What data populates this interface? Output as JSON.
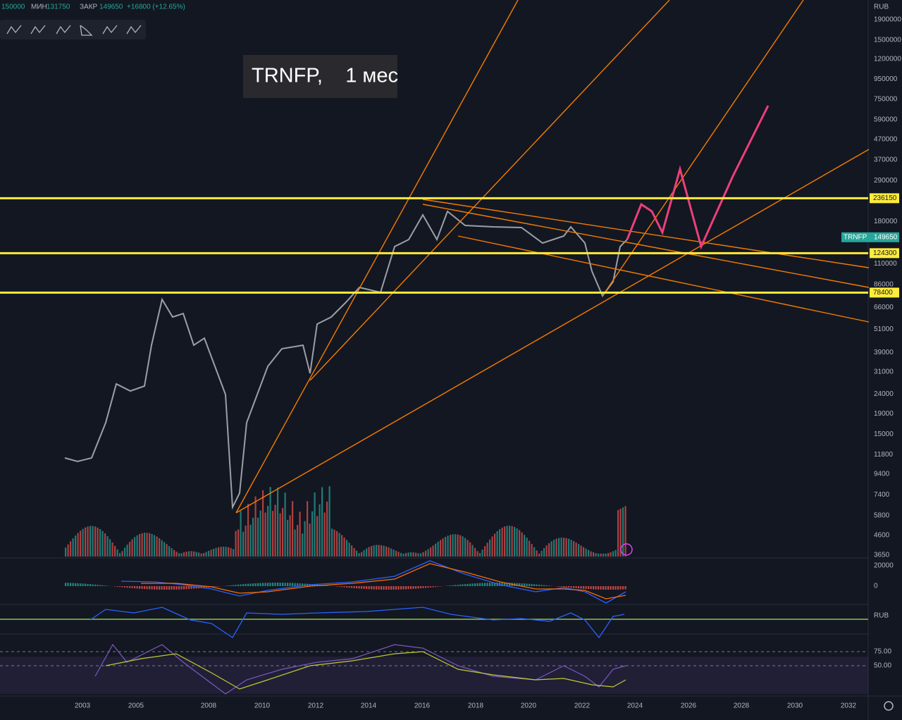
{
  "header": {
    "open": "150000",
    "low_label": "МИН",
    "low": "131750",
    "close_label": "ЗАКР",
    "close": "149650",
    "change": "+16800 (+12.65%)"
  },
  "title": "TRNFP,    1 мес",
  "currency": "RUB",
  "price_axis": {
    "log": true,
    "ticks": [
      1900000,
      1500000,
      1200000,
      950000,
      750000,
      590000,
      470000,
      370000,
      290000,
      180000,
      110000,
      86000,
      66000,
      51000,
      39000,
      31000,
      24000,
      19000,
      15000,
      11800,
      9400,
      7400,
      5800,
      4600,
      3650
    ]
  },
  "levels": [
    236150,
    124300,
    78400
  ],
  "last_price": {
    "symbol": "TRNFP",
    "value": 149650
  },
  "macd_axis": {
    "ticks": [
      20000,
      0
    ]
  },
  "rsi_axis_currency": "RUB",
  "stoch_axis": {
    "ticks": [
      {
        "value": 75,
        "label": "75.00"
      },
      {
        "value": 50,
        "label": "50.00"
      }
    ]
  },
  "years": [
    "2003",
    "2005",
    "2008",
    "2010",
    "2012",
    "2014",
    "2016",
    "2018",
    "2020",
    "2022",
    "2024",
    "2026",
    "2028",
    "2030",
    "2032"
  ]
}
